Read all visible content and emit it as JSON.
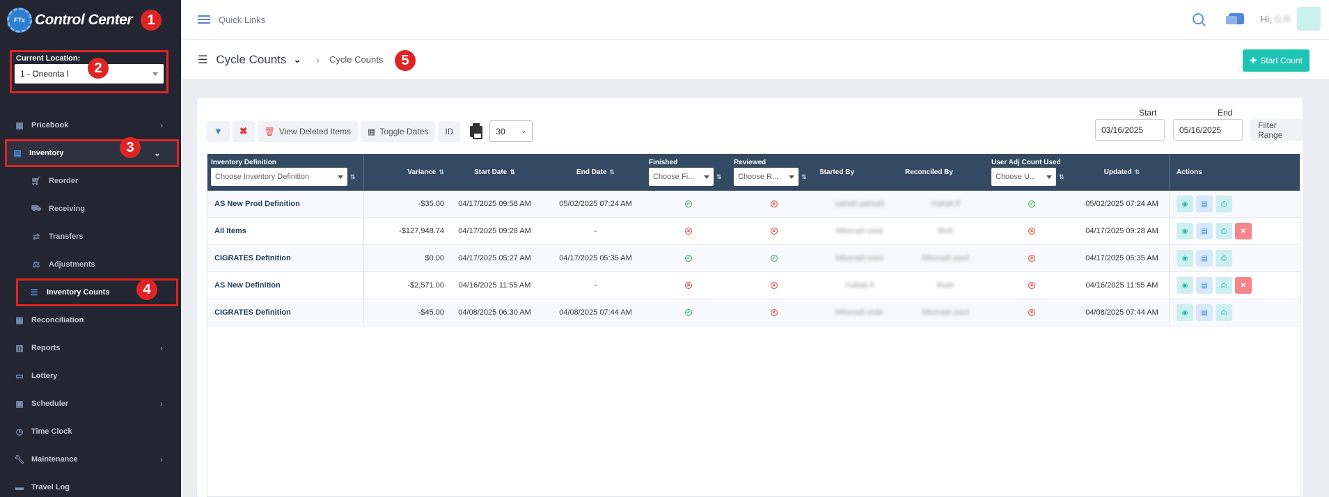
{
  "app": {
    "logo_mark": "FTx",
    "title": "Control Center"
  },
  "location": {
    "label": "Current Location:",
    "value": "1 - Oneonta I"
  },
  "menu": {
    "pricebook": "Pricebook",
    "inventory": "Inventory",
    "reorder": "Reorder",
    "receiving": "Receiving",
    "transfers": "Transfers",
    "adjustments": "Adjustments",
    "inventory_counts": "Inventory Counts",
    "reconciliation": "Reconciliation",
    "reports": "Reports",
    "lottery": "Lottery",
    "scheduler": "Scheduler",
    "time_clock": "Time Clock",
    "maintenance": "Maintenance",
    "travel_log": "Travel Log"
  },
  "badges": [
    "1",
    "2",
    "3",
    "4",
    "5"
  ],
  "topbar": {
    "quick_links": "Quick Links",
    "greeting": "Hi,",
    "user": "G.R."
  },
  "subheader": {
    "title": "Cycle Counts",
    "crumb": "Cycle Counts",
    "start_button": "Start Count"
  },
  "toolbar": {
    "view_deleted": "View Deleted Items",
    "toggle_dates": "Toggle Dates",
    "id": "ID",
    "page_size": "30"
  },
  "range": {
    "start_label": "Start",
    "end_label": "End",
    "start": "03/16/2025",
    "end": "05/16/2025",
    "filter_button": "Filter Range"
  },
  "table": {
    "headers": {
      "definition": "Inventory Definition",
      "definition_placeholder": "Choose Inventory Definition",
      "variance": "Variance",
      "start_date": "Start Date",
      "end_date": "End Date",
      "finished": "Finished",
      "finished_placeholder": "Choose Fi...",
      "reviewed": "Reviewed",
      "reviewed_placeholder": "Choose R...",
      "started_by": "Started By",
      "reconciled_by": "Reconciled By",
      "user_adj": "User Adj Count Used",
      "user_adj_placeholder": "Choose U...",
      "updated": "Updated",
      "actions": "Actions"
    },
    "rows": [
      {
        "definition": "AS New Prod Definition",
        "variance": "-$35.00",
        "start": "04/17/2025 09:58 AM",
        "end": "05/02/2025 07:24 AM",
        "finished": true,
        "reviewed": false,
        "started_by": "sakiab yabsad",
        "reconciled_by": "makak ff",
        "user_adj": true,
        "updated": "05/02/2025 07:24 AM",
        "deletable": false
      },
      {
        "definition": "All Items",
        "variance": "-$127,948.74",
        "start": "04/17/2025 09:28 AM",
        "end": "-",
        "finished": false,
        "reviewed": false,
        "started_by": "Mlsoradi ssed",
        "reconciled_by": "Bsdi",
        "user_adj": false,
        "updated": "04/17/2025 09:28 AM",
        "deletable": true
      },
      {
        "definition": "CIGRATES Definition",
        "variance": "$0.00",
        "start": "04/17/2025 05:27 AM",
        "end": "04/17/2025 05:35 AM",
        "finished": true,
        "reviewed": true,
        "started_by": "Mlsoradi ssed",
        "reconciled_by": "Mlsoradi ssed",
        "user_adj": false,
        "updated": "04/17/2025 05:35 AM",
        "deletable": false
      },
      {
        "definition": "AS New Definition",
        "variance": "-$2,571.00",
        "start": "04/16/2025 11:55 AM",
        "end": "-",
        "finished": false,
        "reviewed": false,
        "started_by": "makab ff",
        "reconciled_by": "Bsds",
        "user_adj": false,
        "updated": "04/16/2025 11:55 AM",
        "deletable": true
      },
      {
        "definition": "CIGRATES Definition",
        "variance": "-$45.00",
        "start": "04/08/2025 06:30 AM",
        "end": "04/08/2025 07:44 AM",
        "finished": true,
        "reviewed": false,
        "started_by": "Mlsoradi ssde",
        "reconciled_by": "Mlsoradi ssed",
        "user_adj": false,
        "updated": "04/08/2025 07:44 AM",
        "deletable": false
      }
    ]
  },
  "colors": {
    "sidebar_bg": "#232631",
    "accent_teal": "#1fc3b4",
    "header_bg": "#344a63",
    "annotation_red": "#e02424"
  }
}
